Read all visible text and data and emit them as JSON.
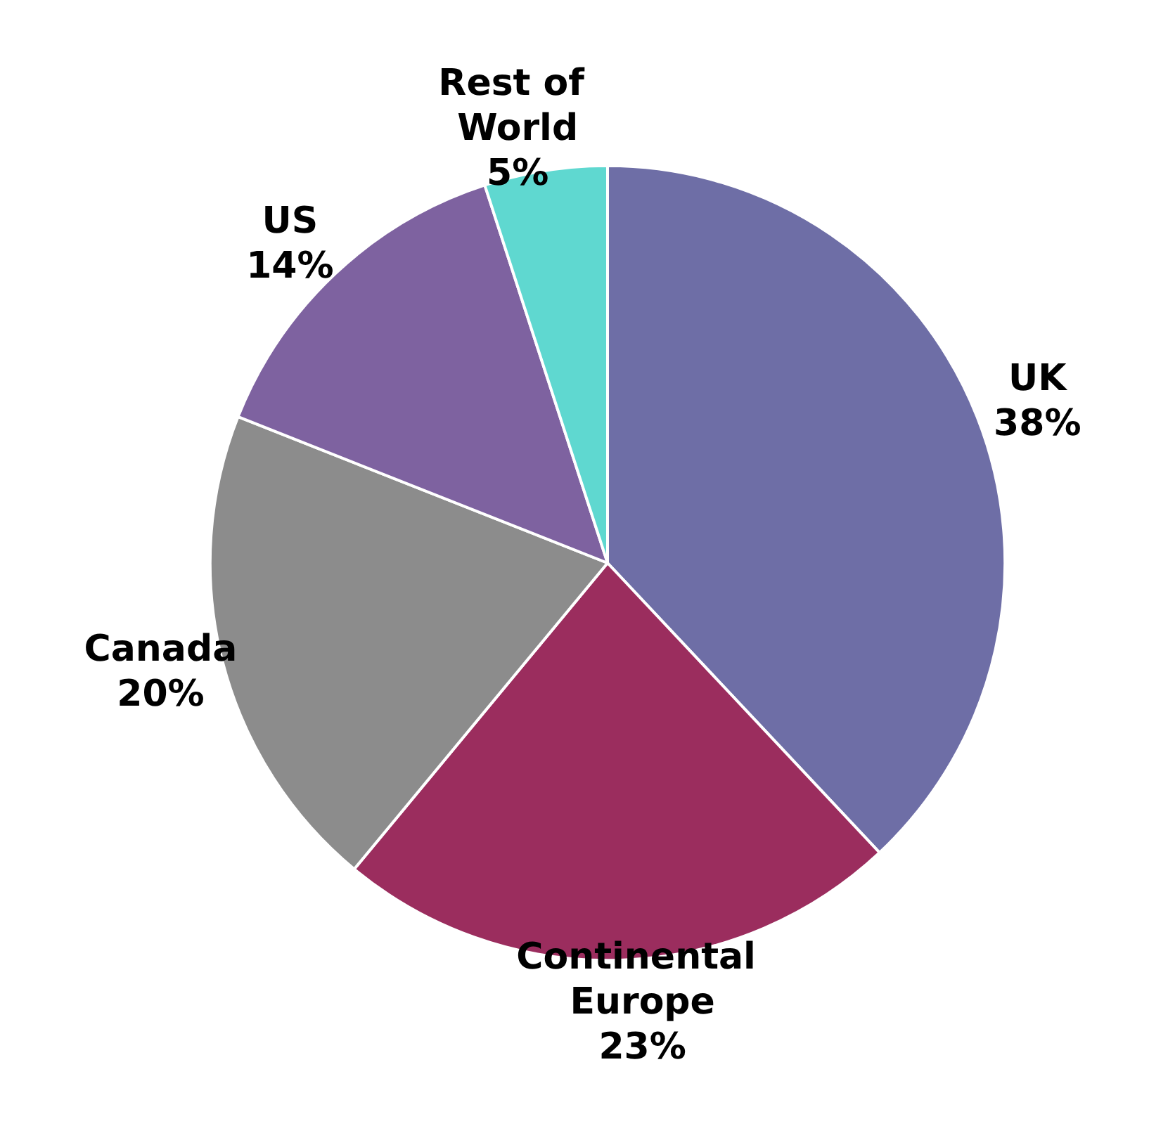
{
  "chart_data": {
    "type": "pie",
    "categories": [
      "UK",
      "Continental Europe",
      "Canada",
      "US",
      "Rest of World"
    ],
    "values": [
      38,
      23,
      20,
      14,
      5
    ],
    "colors": [
      "#6e6ea6",
      "#9b2d5e",
      "#8c8c8c",
      "#7e62a0",
      "#5fd8d0"
    ],
    "value_labels": [
      "38%",
      "23%",
      "20%",
      "14%",
      "5%"
    ],
    "legend": false
  }
}
